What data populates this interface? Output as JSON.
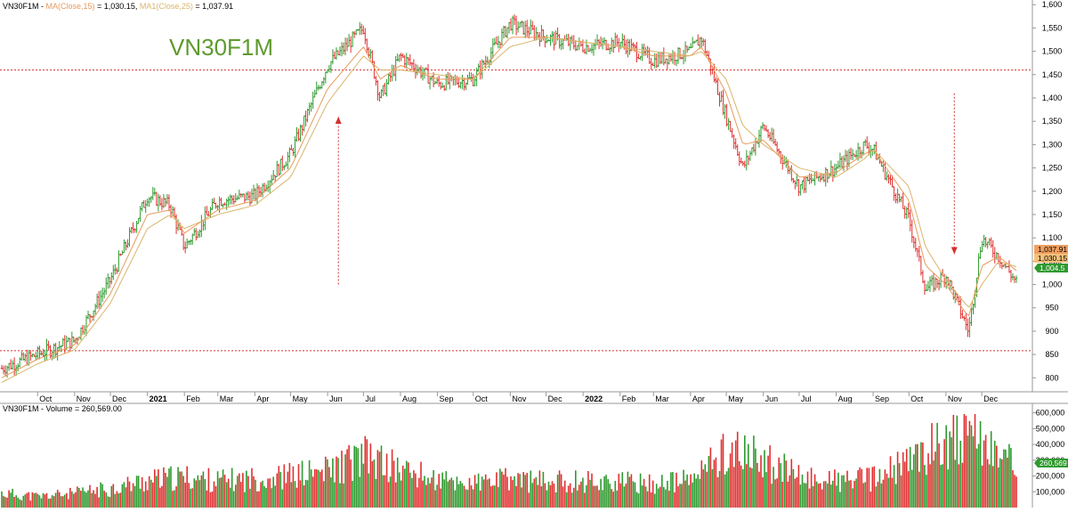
{
  "header": {
    "price_symbol": "VN30F1M - ",
    "ma15_label": "MA(Close,15)",
    "ma15_value": " = 1,030.15, ",
    "ma25_label": "MA1(Close,25)",
    "ma25_value": " = 1,037.91",
    "volume_label": "VN30F1M - Volume = 260,569.00"
  },
  "watermark": "VN30F1M",
  "badges": {
    "ma25": "1,037.91",
    "ma15": "1,030.15",
    "last": "1,004.5",
    "volume": "260,569"
  },
  "colors": {
    "up": "#2f9a2f",
    "down": "#e03030",
    "ma15": "#e89a5b",
    "ma25": "#d9b56b",
    "reference": "#d43030",
    "title": "#5e9a2e"
  },
  "chart_data": [
    {
      "type": "line",
      "title": "",
      "series": [
        {
          "name": "VN30F1M",
          "x": [
            "2020-09-01",
            "2020-10-01",
            "2020-11-01",
            "2020-12-01",
            "2021-01-01",
            "2021-01-20",
            "2021-02-01",
            "2021-03-01",
            "2021-04-01",
            "2021-05-01",
            "2021-06-01",
            "2021-07-01",
            "2021-07-15",
            "2021-08-01",
            "2021-09-01",
            "2021-10-01",
            "2021-11-01",
            "2021-12-01",
            "2022-01-01",
            "2022-02-01",
            "2022-03-01",
            "2022-04-01",
            "2022-04-10",
            "2022-05-01",
            "2022-05-15",
            "2022-06-01",
            "2022-07-01",
            "2022-08-01",
            "2022-08-25",
            "2022-09-01",
            "2022-10-01",
            "2022-10-15",
            "2022-11-01",
            "2022-11-20",
            "2022-12-01",
            "2022-12-15",
            "2022-12-30"
          ],
          "values": [
            820,
            850,
            880,
            1010,
            1190,
            1170,
            1080,
            1180,
            1190,
            1280,
            1470,
            1550,
            1400,
            1490,
            1430,
            1440,
            1560,
            1530,
            1510,
            1520,
            1480,
            1500,
            1530,
            1360,
            1250,
            1340,
            1210,
            1250,
            1300,
            1290,
            1140,
            990,
            1020,
            900,
            1100,
            1060,
            1005
          ]
        },
        {
          "name": "MA(Close,15)",
          "values": [
            800,
            840,
            870,
            980,
            1150,
            1160,
            1110,
            1160,
            1180,
            1250,
            1420,
            1510,
            1440,
            1470,
            1440,
            1440,
            1530,
            1530,
            1520,
            1510,
            1490,
            1490,
            1510,
            1410,
            1300,
            1310,
            1230,
            1240,
            1280,
            1290,
            1180,
            1040,
            1000,
            930,
            1040,
            1060,
            1030
          ]
        },
        {
          "name": "MA1(Close,25)",
          "values": [
            790,
            830,
            860,
            960,
            1120,
            1150,
            1120,
            1150,
            1170,
            1230,
            1390,
            1490,
            1460,
            1460,
            1450,
            1440,
            1510,
            1530,
            1520,
            1510,
            1500,
            1490,
            1500,
            1440,
            1340,
            1300,
            1250,
            1230,
            1270,
            1290,
            1210,
            1080,
            1010,
            950,
            1000,
            1050,
            1038
          ]
        }
      ],
      "ylim": [
        770,
        1610
      ],
      "yticks": [
        800,
        850,
        900,
        950,
        1000,
        1050,
        1100,
        1150,
        1200,
        1250,
        1300,
        1350,
        1400,
        1450,
        1500,
        1550,
        1600
      ],
      "ytick_labels": [
        "800",
        "850",
        "900",
        "950",
        "1,000",
        "1,050",
        "1,100",
        "1,150",
        "1,200",
        "1,250",
        "1,300",
        "1,350",
        "1,400",
        "1,450",
        "1,500",
        "1,550",
        "1,600"
      ],
      "xtick_labels": [
        {
          "label": "Oct",
          "date": "2020-10-01"
        },
        {
          "label": "Nov",
          "date": "2020-11-01"
        },
        {
          "label": "Dec",
          "date": "2020-12-01"
        },
        {
          "label": "2021",
          "date": "2021-01-01",
          "bold": true
        },
        {
          "label": "Feb",
          "date": "2021-02-01"
        },
        {
          "label": "Mar",
          "date": "2021-03-01"
        },
        {
          "label": "Apr",
          "date": "2021-04-01"
        },
        {
          "label": "May",
          "date": "2021-05-01"
        },
        {
          "label": "Jun",
          "date": "2021-06-01"
        },
        {
          "label": "Jul",
          "date": "2021-07-01"
        },
        {
          "label": "Aug",
          "date": "2021-08-01"
        },
        {
          "label": "Sep",
          "date": "2021-09-01"
        },
        {
          "label": "Oct",
          "date": "2021-10-01"
        },
        {
          "label": "Nov",
          "date": "2021-11-01"
        },
        {
          "label": "Dec",
          "date": "2021-12-01"
        },
        {
          "label": "2022",
          "date": "2022-01-01",
          "bold": true
        },
        {
          "label": "Feb",
          "date": "2022-02-01"
        },
        {
          "label": "Mar",
          "date": "2022-03-01"
        },
        {
          "label": "Apr",
          "date": "2022-04-01"
        },
        {
          "label": "May",
          "date": "2022-05-01"
        },
        {
          "label": "Jun",
          "date": "2022-06-01"
        },
        {
          "label": "Jul",
          "date": "2022-07-01"
        },
        {
          "label": "Aug",
          "date": "2022-08-01"
        },
        {
          "label": "Sep",
          "date": "2022-09-01"
        },
        {
          "label": "Oct",
          "date": "2022-10-01"
        },
        {
          "label": "Nov",
          "date": "2022-11-01"
        },
        {
          "label": "Dec",
          "date": "2022-12-01"
        }
      ],
      "reference_lines": [
        1460,
        858
      ],
      "arrows": [
        {
          "direction": "up",
          "date": "2021-06-10",
          "from": 1000,
          "to": 1360
        },
        {
          "direction": "down",
          "date": "2022-11-08",
          "from": 1410,
          "to": 1065
        }
      ],
      "grid": false,
      "legend": "top-left"
    },
    {
      "type": "bar",
      "title": "",
      "series": [
        {
          "name": "Volume",
          "x": [
            "2020-09-01",
            "2020-10-01",
            "2020-11-01",
            "2020-12-01",
            "2021-01-01",
            "2021-02-01",
            "2021-03-01",
            "2021-04-01",
            "2021-05-01",
            "2021-06-01",
            "2021-07-01",
            "2021-08-01",
            "2021-09-01",
            "2021-10-01",
            "2021-11-01",
            "2021-12-01",
            "2022-01-01",
            "2022-02-01",
            "2022-03-01",
            "2022-04-01",
            "2022-05-01",
            "2022-06-01",
            "2022-07-01",
            "2022-08-01",
            "2022-09-01",
            "2022-10-01",
            "2022-11-01",
            "2022-12-01",
            "2022-12-30"
          ],
          "values": [
            90000,
            70000,
            90000,
            120000,
            170000,
            190000,
            170000,
            180000,
            200000,
            230000,
            320000,
            240000,
            170000,
            150000,
            180000,
            160000,
            170000,
            160000,
            150000,
            170000,
            360000,
            300000,
            190000,
            170000,
            180000,
            280000,
            440000,
            420000,
            260569
          ]
        }
      ],
      "ylim": [
        0,
        660000
      ],
      "yticks": [
        100000,
        200000,
        300000,
        400000,
        500000,
        600000
      ],
      "ytick_labels": [
        "100,000",
        "200,000",
        "300,000",
        "400,000",
        "500,000",
        "600,000"
      ],
      "grid": false
    }
  ]
}
